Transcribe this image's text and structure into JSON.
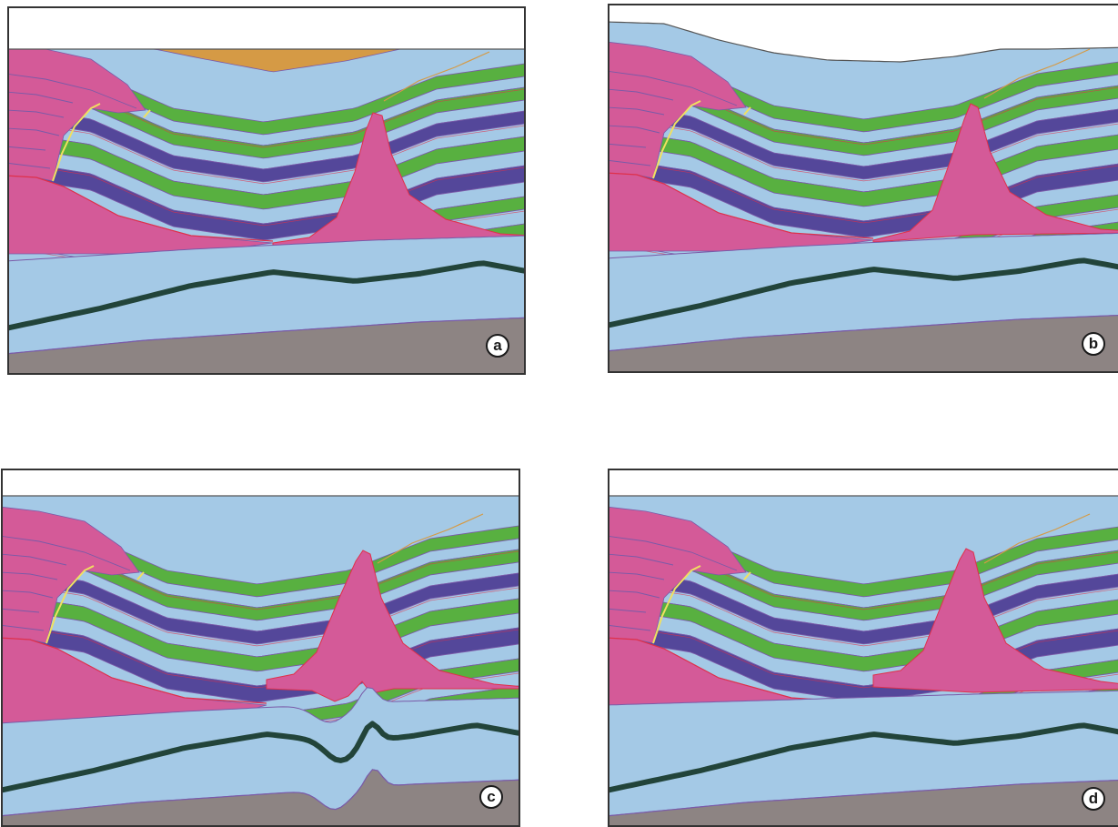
{
  "panels": [
    {
      "id": "a",
      "label": "a"
    },
    {
      "id": "b",
      "label": "b"
    },
    {
      "id": "c",
      "label": "c"
    },
    {
      "id": "d",
      "label": "d"
    }
  ],
  "colors": {
    "sky": "#ffffff",
    "orange_layer": "#d59a45",
    "green_layer": "#58b040",
    "light_blue_layer": "#a4c9e6",
    "dark_blue_layer": "#54479a",
    "salt_pink": "#d45a98",
    "basement_gray": "#8d8483",
    "dark_marker": "#22443a",
    "fault_yellow": "#f0e060",
    "contact_red": "#e0304a",
    "layer_outline": "#7a5aa8"
  }
}
